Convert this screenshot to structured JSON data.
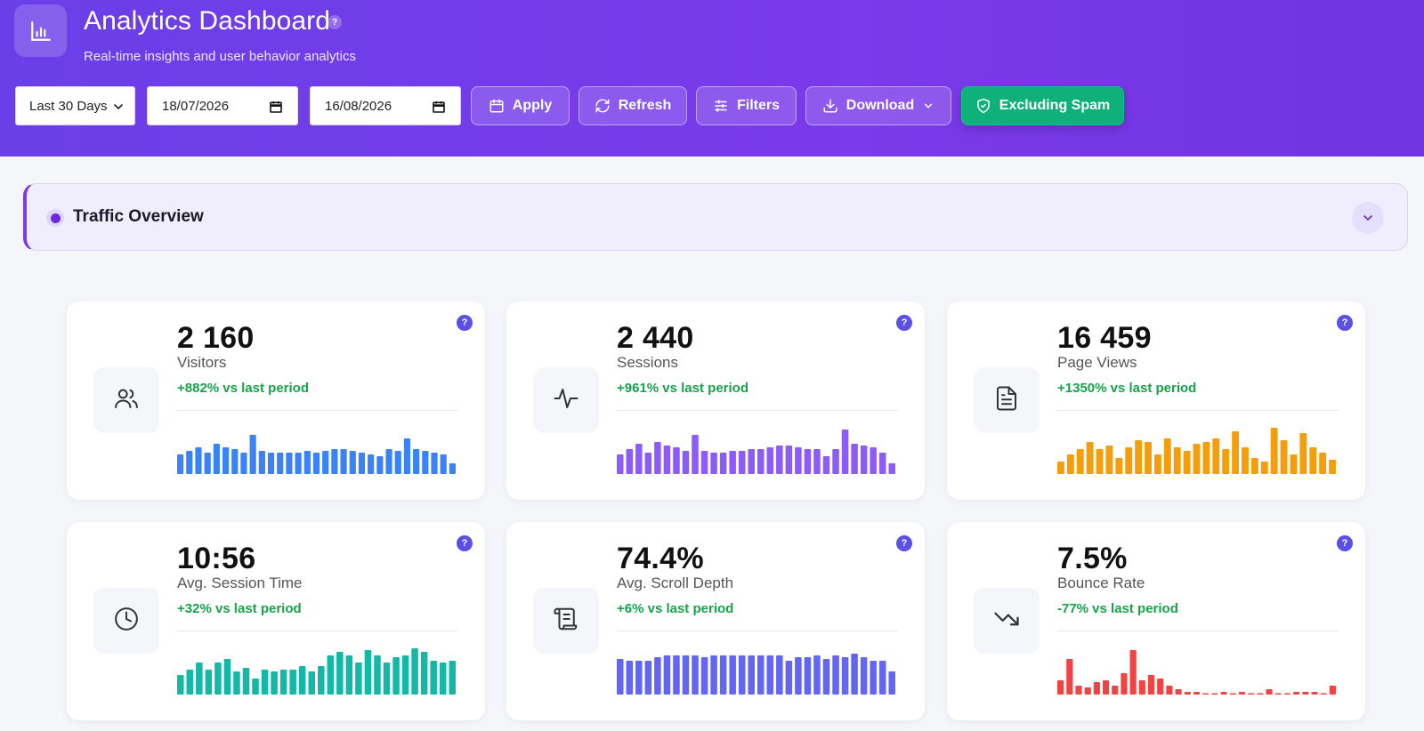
{
  "header": {
    "title": "Analytics Dashboard",
    "help": "?",
    "subtitle": "Real-time insights and user behavior analytics",
    "range_select": "Last 30 Days",
    "start_date": "18/07/2026",
    "end_date": "16/08/2026",
    "apply_label": "Apply",
    "refresh_label": "Refresh",
    "filters_label": "Filters",
    "download_label": "Download",
    "spam_label": "Excluding Spam"
  },
  "section": {
    "title": "Traffic Overview"
  },
  "cards": [
    {
      "value": "2 160",
      "label": "Visitors",
      "change": "+882% vs last period",
      "color": "#3b82f6",
      "icon": "users-icon",
      "bars": [
        22,
        26,
        30,
        24,
        34,
        30,
        28,
        24,
        44,
        26,
        24,
        24,
        24,
        24,
        26,
        24,
        26,
        28,
        28,
        26,
        24,
        22,
        20,
        28,
        26,
        40,
        28,
        26,
        24,
        22,
        12
      ]
    },
    {
      "value": "2 440",
      "label": "Sessions",
      "change": "+961% vs last period",
      "color": "#8b5cf6",
      "icon": "activity-icon",
      "bars": [
        22,
        28,
        34,
        24,
        36,
        32,
        30,
        26,
        44,
        26,
        24,
        24,
        26,
        26,
        28,
        28,
        30,
        32,
        32,
        30,
        28,
        28,
        20,
        28,
        50,
        34,
        32,
        30,
        24,
        12
      ]
    },
    {
      "value": "16 459",
      "label": "Page Views",
      "change": "+1350% vs last period",
      "color": "#f59e0b",
      "icon": "document-icon",
      "bars": [
        14,
        22,
        28,
        36,
        28,
        32,
        18,
        30,
        38,
        36,
        22,
        40,
        30,
        26,
        34,
        36,
        40,
        28,
        48,
        30,
        18,
        14,
        52,
        38,
        22,
        46,
        30,
        24,
        16
      ]
    },
    {
      "value": "10:56",
      "label": "Avg. Session Time",
      "change": "+32% vs last period",
      "color": "#14b8a6",
      "icon": "clock-icon",
      "bars": [
        22,
        28,
        36,
        28,
        36,
        40,
        26,
        30,
        18,
        28,
        26,
        28,
        28,
        32,
        26,
        32,
        44,
        48,
        44,
        36,
        50,
        44,
        36,
        42,
        44,
        52,
        48,
        38,
        36,
        38
      ]
    },
    {
      "value": "74.4%",
      "label": "Avg. Scroll Depth",
      "change": "+6% vs last period",
      "color": "#6366f1",
      "icon": "scroll-icon",
      "bars": [
        40,
        38,
        38,
        38,
        42,
        44,
        44,
        44,
        44,
        42,
        44,
        44,
        44,
        44,
        44,
        44,
        44,
        44,
        38,
        42,
        42,
        44,
        40,
        44,
        42,
        46,
        42,
        38,
        38,
        26
      ]
    },
    {
      "value": "7.5%",
      "label": "Bounce Rate",
      "change": "-77% vs last period",
      "color": "#ef4444",
      "icon": "trending-down-icon",
      "bars": [
        16,
        40,
        10,
        8,
        14,
        16,
        10,
        24,
        50,
        16,
        22,
        18,
        10,
        6,
        3,
        3,
        0,
        0,
        3,
        0,
        3,
        0,
        0,
        6,
        0,
        0,
        3,
        3,
        3,
        0,
        10
      ]
    }
  ]
}
